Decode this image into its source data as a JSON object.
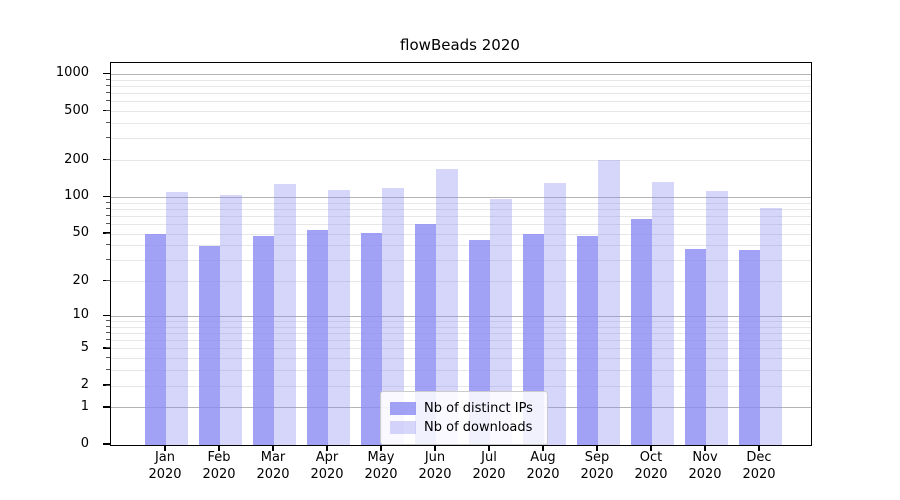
{
  "chart_data": {
    "type": "bar",
    "title": "flowBeads 2020",
    "categories": [
      "Jan 2020",
      "Feb 2020",
      "Mar 2020",
      "Apr 2020",
      "May 2020",
      "Jun 2020",
      "Jul 2020",
      "Aug 2020",
      "Sep 2020",
      "Oct 2020",
      "Nov 2020",
      "Dec 2020"
    ],
    "series": [
      {
        "name": "Nb of distinct IPs",
        "color": "rgba(137,137,242,0.8)",
        "values": [
          50,
          40,
          48,
          54,
          51,
          61,
          45,
          50,
          48,
          66,
          38,
          37
        ]
      },
      {
        "name": "Nb of downloads",
        "color": "rgba(137,137,242,0.35)",
        "values": [
          110,
          104,
          129,
          115,
          119,
          170,
          98,
          131,
          204,
          134,
          112,
          82
        ]
      }
    ],
    "yscale": "log1p",
    "y_ticks": [
      0,
      1,
      2,
      5,
      10,
      20,
      50,
      100,
      200,
      500,
      1000
    ],
    "y_minor_ticks": [
      2,
      3,
      4,
      5,
      6,
      7,
      8,
      9,
      20,
      30,
      40,
      50,
      60,
      70,
      80,
      90,
      200,
      300,
      400,
      500,
      600,
      700,
      800,
      900
    ],
    "y_major_gridlines": [
      1,
      10,
      100,
      1000
    ],
    "ylim": [
      0,
      1240
    ],
    "xlabel": "",
    "ylabel": "",
    "grid": true,
    "legend_position": "lower center",
    "colors": {
      "bar_base": "#8989f2",
      "major_grid": "#b4b4b4",
      "minor_grid": "#e7e7e7",
      "axis": "#000000"
    }
  }
}
